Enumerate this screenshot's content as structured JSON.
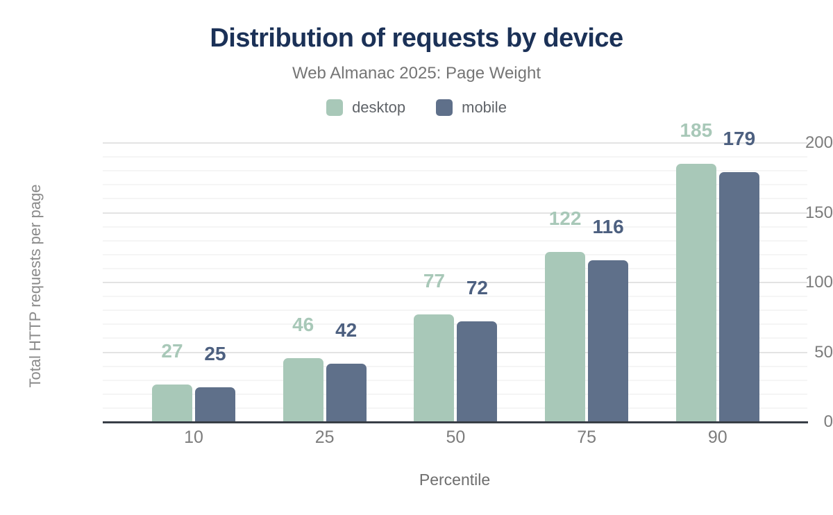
{
  "title": "Distribution of requests by device",
  "subtitle": "Web Almanac 2025: Page Weight",
  "legend": {
    "items": [
      {
        "label": "desktop",
        "color": "#a8c8b8"
      },
      {
        "label": "mobile",
        "color": "#5f708a"
      }
    ]
  },
  "axes": {
    "y_label": "Total HTTP requests per page",
    "x_label": "Percentile"
  },
  "colors": {
    "title_navy": "#1b3157",
    "desktop_green": "#a8c8b8",
    "mobile_slate": "#5f708a",
    "mobile_label": "#4d6080",
    "axis_line": "#383e46"
  },
  "chart_data": {
    "type": "bar",
    "title": "Distribution of requests by device",
    "subtitle": "Web Almanac 2025: Page Weight",
    "categories": [
      "10",
      "25",
      "50",
      "75",
      "90"
    ],
    "series": [
      {
        "name": "desktop",
        "values": [
          27,
          46,
          77,
          122,
          185
        ],
        "color": "#a8c8b8",
        "label_color": "#a8c8b8"
      },
      {
        "name": "mobile",
        "values": [
          25,
          42,
          72,
          116,
          179
        ],
        "color": "#5f708a",
        "label_color": "#4d6080"
      }
    ],
    "xlabel": "Percentile",
    "ylabel": "Total HTTP requests per page",
    "ylim": [
      0,
      200
    ],
    "yticks": [
      0,
      50,
      100,
      150,
      200
    ],
    "minor_gridline_step": 10,
    "grid": "on",
    "legend_position": "top",
    "bar_labels": true
  }
}
